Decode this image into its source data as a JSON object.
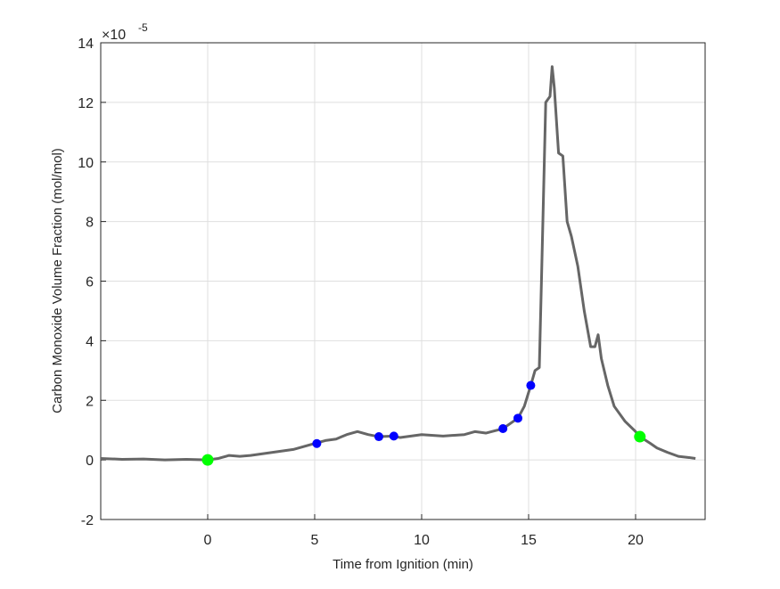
{
  "chart_data": {
    "type": "line",
    "xlabel": "Time from Ignition (min)",
    "ylabel": "Carbon Monoxide Volume Fraction (mol/mol)",
    "y_multiplier": {
      "base": "×10",
      "exponent": "-5"
    },
    "xlim": [
      -5,
      23.25
    ],
    "ylim": [
      -2,
      14
    ],
    "xticks": [
      0,
      5,
      10,
      15,
      20
    ],
    "yticks": [
      -2,
      0,
      2,
      4,
      6,
      8,
      10,
      12,
      14
    ],
    "grid": true,
    "series": [
      {
        "color": "#666666",
        "style": "line-dots",
        "x": [
          -5,
          -4,
          -3,
          -2,
          -1,
          0,
          0.5,
          1,
          1.5,
          2,
          3,
          4,
          5,
          5.5,
          6,
          6.5,
          7,
          7.5,
          8,
          8.7,
          9,
          10,
          11,
          12,
          12.5,
          13,
          13.8,
          14.5,
          14.8,
          15.1,
          15.3,
          15.5,
          15.6,
          15.7,
          15.8,
          16.0,
          16.1,
          16.2,
          16.4,
          16.6,
          16.8,
          17.0,
          17.3,
          17.6,
          17.9,
          18.1,
          18.25,
          18.4,
          18.7,
          19,
          19.5,
          20,
          20.2,
          20.7,
          21,
          21.5,
          22,
          22.5,
          22.8
        ],
        "values": [
          0.05,
          0.02,
          0.03,
          0.0,
          0.02,
          0.0,
          0.05,
          0.15,
          0.12,
          0.15,
          0.25,
          0.35,
          0.55,
          0.65,
          0.7,
          0.85,
          0.95,
          0.85,
          0.78,
          0.8,
          0.75,
          0.85,
          0.8,
          0.85,
          0.95,
          0.9,
          1.05,
          1.4,
          1.8,
          2.5,
          3.0,
          3.1,
          6,
          9,
          12,
          12.2,
          13.2,
          12.5,
          10.3,
          10.2,
          8,
          7.5,
          6.5,
          5,
          3.8,
          3.8,
          4.2,
          3.4,
          2.5,
          1.8,
          1.3,
          0.95,
          0.78,
          0.55,
          0.4,
          0.25,
          0.12,
          0.08,
          0.05
        ]
      },
      {
        "color": "#0000ff",
        "style": "markers",
        "size": 5,
        "x": [
          5.1,
          8,
          8.7,
          13.8,
          14.5,
          15.1
        ],
        "values": [
          0.55,
          0.78,
          0.8,
          1.05,
          1.4,
          2.5
        ]
      },
      {
        "color": "#00ff00",
        "style": "markers",
        "size": 6.5,
        "x": [
          0,
          20.2
        ],
        "values": [
          0,
          0.78
        ]
      }
    ]
  }
}
